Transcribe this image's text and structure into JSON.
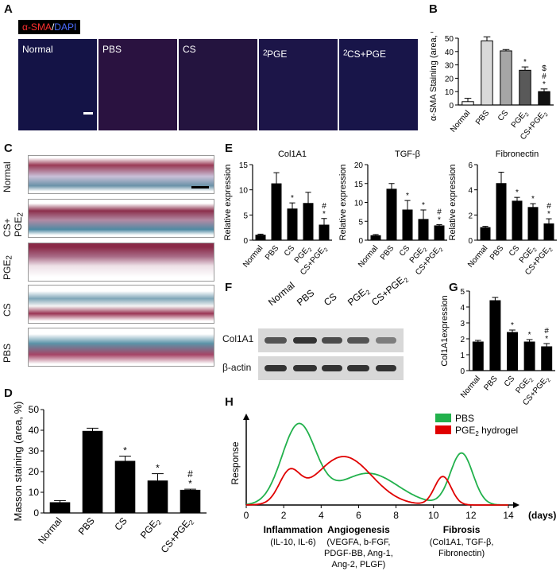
{
  "panels": {
    "A": {
      "label": "A",
      "legend_red": "α-SMA",
      "legend_sep": "/",
      "legend_blue": "DAPI",
      "tiles": [
        "Normal",
        "PBS",
        "CS",
        "PGE",
        "CS+PGE"
      ],
      "sub": "2"
    },
    "C": {
      "label": "C",
      "rows": [
        "Normal",
        "CS+ PGE",
        "PGE",
        "CS",
        "PBS"
      ],
      "sub": "2"
    },
    "F": {
      "label": "F",
      "lanes": [
        "Normal",
        "PBS",
        "CS",
        "PGE",
        "CS+PGE"
      ],
      "sub": "2",
      "rows": [
        "Col1A1",
        "β-actin"
      ]
    }
  },
  "chart_data": [
    {
      "id": "B",
      "label": "B",
      "type": "bar",
      "ylabel": "α-SMA Staining (area, %)",
      "categories": [
        "Normal",
        "PBS",
        "CS",
        "PGE2",
        "CS+PGE2"
      ],
      "values": [
        2.5,
        48,
        40.5,
        26,
        10
      ],
      "errors": [
        2.5,
        3,
        1,
        2.5,
        2
      ],
      "ylim": [
        0,
        50
      ],
      "yticks": [
        0,
        10,
        20,
        30,
        40,
        50
      ],
      "colors": [
        "#ffffff",
        "#d9d9d9",
        "#a6a6a6",
        "#595959",
        "#111111"
      ],
      "annotations": [
        "",
        "",
        "",
        "*",
        "$\n#\n*"
      ]
    },
    {
      "id": "D",
      "label": "D",
      "type": "bar",
      "ylabel": "Masson staining (area, %)",
      "categories": [
        "Normal",
        "PBS",
        "CS",
        "PGE2",
        "CS+PGE2"
      ],
      "values": [
        5,
        39.5,
        25,
        15.5,
        11
      ],
      "errors": [
        1,
        1.5,
        2.5,
        3.5,
        0.5
      ],
      "ylim": [
        0,
        50
      ],
      "yticks": [
        0,
        10,
        20,
        30,
        40,
        50
      ],
      "annotations": [
        "",
        "",
        "*",
        "*",
        "#\n*"
      ]
    },
    {
      "id": "E1",
      "label": "E",
      "type": "bar",
      "title": "Col1A1",
      "ylabel": "Relative expression",
      "categories": [
        "Normal",
        "PBS",
        "CS",
        "PGE2",
        "CS+PGE2"
      ],
      "values": [
        1,
        11.2,
        6.2,
        7.3,
        3
      ],
      "errors": [
        0.2,
        2.2,
        1.2,
        2.2,
        1.3
      ],
      "ylim": [
        0,
        15
      ],
      "yticks": [
        0,
        5,
        10,
        15
      ],
      "annotations": [
        "",
        "",
        "*",
        "",
        "#\n*"
      ]
    },
    {
      "id": "E2",
      "type": "bar",
      "title": "TGF-β",
      "ylabel": "Relative expression",
      "categories": [
        "Normal",
        "PBS",
        "CS",
        "PGE2",
        "CS+PGE2"
      ],
      "values": [
        1.2,
        13.5,
        8,
        5.5,
        3.8
      ],
      "errors": [
        0.3,
        1.5,
        2.5,
        2.5,
        0.3
      ],
      "ylim": [
        0,
        20
      ],
      "yticks": [
        0,
        5,
        10,
        15,
        20
      ],
      "annotations": [
        "",
        "",
        "*",
        "*",
        "#\n*"
      ]
    },
    {
      "id": "E3",
      "type": "bar",
      "title": "Fibronectin",
      "ylabel": "Relative expression",
      "categories": [
        "Normal",
        "PBS",
        "CS",
        "PGE2",
        "CS+PGE2"
      ],
      "values": [
        1,
        4.5,
        3.1,
        2.6,
        1.3
      ],
      "errors": [
        0.1,
        0.9,
        0.3,
        0.3,
        0.4
      ],
      "ylim": [
        0,
        6
      ],
      "yticks": [
        0,
        2,
        4,
        6
      ],
      "annotations": [
        "",
        "",
        "*",
        "*",
        "#\n*"
      ]
    },
    {
      "id": "G",
      "label": "G",
      "type": "bar",
      "ylabel": "Col1A1expression",
      "categories": [
        "Normal",
        "PBS",
        "CS",
        "PGE2",
        "CS+PGE2"
      ],
      "values": [
        1.8,
        4.4,
        2.4,
        1.8,
        1.5
      ],
      "errors": [
        0.1,
        0.2,
        0.15,
        0.15,
        0.2
      ],
      "ylim": [
        0,
        5
      ],
      "yticks": [
        0,
        1,
        2,
        3,
        4,
        5
      ],
      "annotations": [
        "",
        "",
        "*",
        "*",
        "#\n*"
      ]
    },
    {
      "id": "H",
      "label": "H",
      "type": "line",
      "ylabel": "Response",
      "xlabel": "(days)",
      "xticks": [
        0,
        2,
        4,
        6,
        8,
        10,
        12,
        14
      ],
      "xlim": [
        0,
        14
      ],
      "legend": [
        "PBS",
        "PGE2 hydrogel"
      ],
      "legend_placement": "top-right",
      "series": [
        {
          "name": "PBS",
          "color": "#22b14c",
          "peaks": [
            {
              "mu": 2.8,
              "sd": 0.9,
              "h": 0.95
            },
            {
              "mu": 6.5,
              "sd": 1.6,
              "h": 0.38
            },
            {
              "mu": 11.5,
              "sd": 0.6,
              "h": 0.62
            }
          ]
        },
        {
          "name": "PGE2 hydrogel",
          "color": "#e00000",
          "peaks": [
            {
              "mu": 2.3,
              "sd": 0.55,
              "h": 0.34
            },
            {
              "mu": 5.2,
              "sd": 1.5,
              "h": 0.58
            },
            {
              "mu": 10.5,
              "sd": 0.45,
              "h": 0.34
            }
          ]
        }
      ],
      "phases": [
        {
          "title": "Inflammation",
          "detail": "(IL-10, IL-6)",
          "x": 2.5
        },
        {
          "title": "Angiogenesis",
          "detail": "(VEGFA, b-FGF,\nPDGF-BB, Ang-1,\nAng-2, PLGF)",
          "x": 6
        },
        {
          "title": "Fibrosis",
          "detail": "(Col1A1, TGF-β,\nFibronectin)",
          "x": 11.5
        }
      ]
    }
  ]
}
